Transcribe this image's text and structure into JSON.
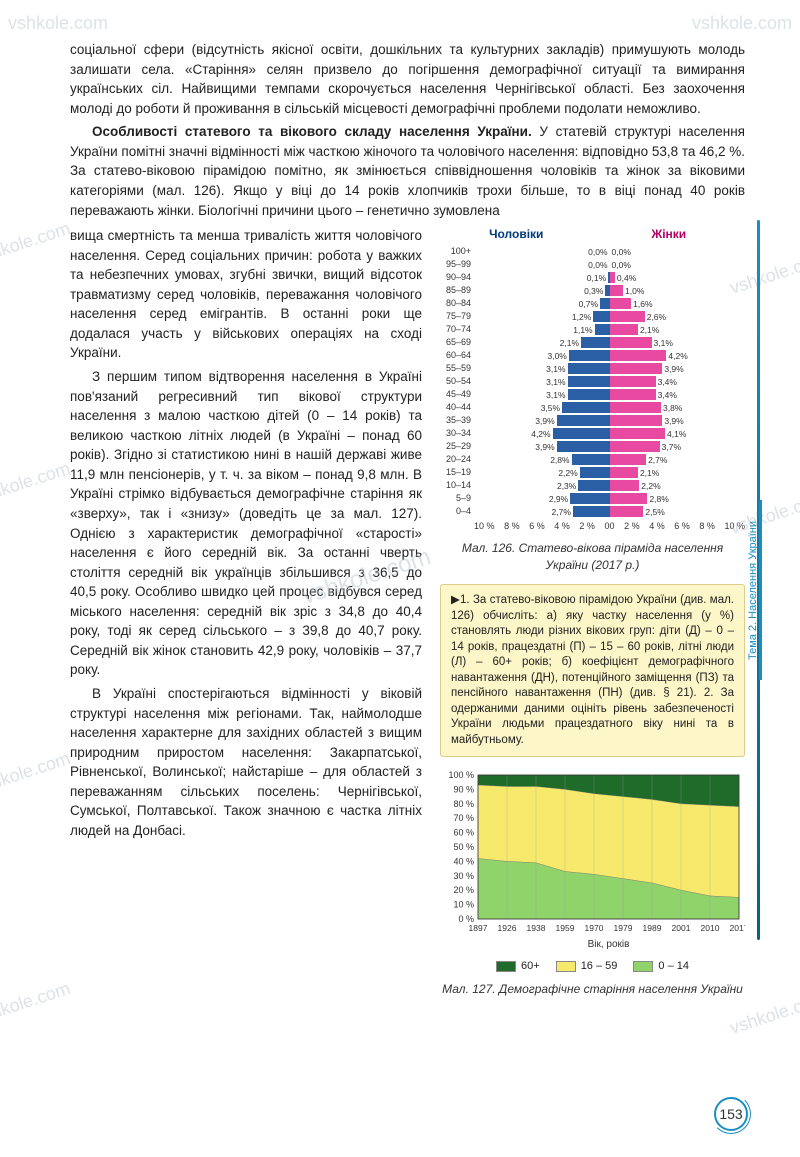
{
  "watermarks": [
    "vshkole.com",
    "vshkole.com",
    "vshkole.com",
    "vshkole.com",
    "vshkole.com",
    "vshkole.com",
    "vshkole.com",
    "vshkole.com",
    "vshkole.com",
    "vshkole.com"
  ],
  "text": {
    "p1": "соціальної сфери (відсутність якісної освіти, дошкільних та культурних закладів) примушують молодь залишати села. «Старіння» селян призвело до погіршення демографічної ситуації та вимирання українських сіл. Найвищими темпами скорочується населення Чернігівської області. Без заохочення молоді до роботи й проживання в сільській місцевості демографічні проблеми подолати неможливо.",
    "h2": "Особливості статевого та вікового складу населення України.",
    "p2": " У статевій структурі населення України помітні значні відмінності між часткою жіночого та чоловічого населення: відповідно 53,8 та 46,2 %. За статево-віковою пірамідою помітно, як змінюється співвідношення чоловіків та жінок за віковими категоріями (мал. 126). Якщо у віці до 14 років хлопчиків трохи більше, то в віці понад 40 років переважають жінки. Біологічні причини цього – генетично зумовлена ",
    "p2b": "вища смертність та менша тривалість життя чоловічого населення. Серед соціальних причин: робота у важких та небезпечних умовах, згубні звички, вищий відсоток травматизму серед чоловіків, переважання чоловічого населення серед емігрантів. В останні роки ще додалася участь у військових операціях на сході України.",
    "p3": "З першим типом відтворення населення в Україні пов'язаний регресивний тип вікової структури населення з малою часткою дітей (0 – 14 років) та великою часткою літніх людей (в Україні – понад 60 років). Згідно зі статистикою нині в нашій державі живе 11,9 млн пенсіонерів, у т. ч. за віком – понад 9,8 млн. В Україні стрімко відбувається демографічне старіння як «зверху», так і «знизу» (доведіть це за мал. 127). Однією з характеристик демографічної «старості» населення є його середній вік. За останні чверть століття середній вік українців збільшився з 36,5 до 40,5 року. Особливо швидко цей процес відбувся серед міського населення: середній вік зріс з 34,8 до 40,4 року, тоді як серед сільського – з 39,8 до 40,7 року. Середній вік жінок становить 42,9 року, чоловіків – 37,7 року.",
    "p4": "В Україні спостерігаються відмінності у віковій структурі населення між регіонами. Так, наймолодше населення характерне для західних областей з вищим природним приростом населення: Закарпатської, Рівненської, Волинської; найстаріше – для областей з переважанням сільських поселень: Чернігівської, Сумської, Полтавської. Також значною є частка літніх людей на Донбасі."
  },
  "pyramid": {
    "title_m": "Чоловіки",
    "title_f": "Жінки",
    "caption": "Мал. 126. Статево-вікова піраміда населення України (2017 р.)",
    "max_pct": 10,
    "colors": {
      "male": "#2b5fa5",
      "female": "#e94aa1"
    },
    "rows": [
      {
        "age": "100+",
        "m": 0.0,
        "f": 0.0,
        "ml": "0,0%",
        "fl": "0,0%"
      },
      {
        "age": "95–99",
        "m": 0.0,
        "f": 0.0,
        "ml": "0,0%",
        "fl": "0,0%"
      },
      {
        "age": "90–94",
        "m": 0.1,
        "f": 0.4,
        "ml": "0,1%",
        "fl": "0,4%"
      },
      {
        "age": "85–89",
        "m": 0.3,
        "f": 1.0,
        "ml": "0,3%",
        "fl": "1,0%"
      },
      {
        "age": "80–84",
        "m": 0.7,
        "f": 1.6,
        "ml": "0,7%",
        "fl": "1,6%"
      },
      {
        "age": "75–79",
        "m": 1.2,
        "f": 2.6,
        "ml": "1,2%",
        "fl": "2,6%"
      },
      {
        "age": "70–74",
        "m": 1.1,
        "f": 2.1,
        "ml": "1,1%",
        "fl": "2,1%"
      },
      {
        "age": "65–69",
        "m": 2.1,
        "f": 3.1,
        "ml": "2,1%",
        "fl": "3,1%"
      },
      {
        "age": "60–64",
        "m": 3.0,
        "f": 4.2,
        "ml": "3,0%",
        "fl": "4,2%"
      },
      {
        "age": "55–59",
        "m": 3.1,
        "f": 3.9,
        "ml": "3,1%",
        "fl": "3,9%"
      },
      {
        "age": "50–54",
        "m": 3.1,
        "f": 3.4,
        "ml": "3,1%",
        "fl": "3,4%"
      },
      {
        "age": "45–49",
        "m": 3.1,
        "f": 3.4,
        "ml": "3,1%",
        "fl": "3,4%"
      },
      {
        "age": "40–44",
        "m": 3.5,
        "f": 3.8,
        "ml": "3,5%",
        "fl": "3,8%"
      },
      {
        "age": "35–39",
        "m": 3.9,
        "f": 3.9,
        "ml": "3,9%",
        "fl": "3,9%"
      },
      {
        "age": "30–34",
        "m": 4.2,
        "f": 4.1,
        "ml": "4,2%",
        "fl": "4,1%"
      },
      {
        "age": "25–29",
        "m": 3.9,
        "f": 3.7,
        "ml": "3,9%",
        "fl": "3,7%"
      },
      {
        "age": "20–24",
        "m": 2.8,
        "f": 2.7,
        "ml": "2,8%",
        "fl": "2,7%"
      },
      {
        "age": "15–19",
        "m": 2.2,
        "f": 2.1,
        "ml": "2,2%",
        "fl": "2,1%"
      },
      {
        "age": "10–14",
        "m": 2.3,
        "f": 2.2,
        "ml": "2,3%",
        "fl": "2,2%"
      },
      {
        "age": "5–9",
        "m": 2.9,
        "f": 2.8,
        "ml": "2,9%",
        "fl": "2,8%"
      },
      {
        "age": "0–4",
        "m": 2.7,
        "f": 2.5,
        "ml": "2,7%",
        "fl": "2,5%"
      }
    ],
    "xticks_left": [
      "10 %",
      "8 %",
      "6 %",
      "4 %",
      "2 %",
      "0"
    ],
    "xticks_right": [
      "0",
      "2 %",
      "4 %",
      "6 %",
      "8 %",
      "10 %"
    ]
  },
  "task": {
    "text": "▶1. За статево-віковою пірамідою України (див. мал. 126) обчисліть: а) яку частку населення (у %) становлять люди різних вікових груп: діти (Д) – 0 – 14 років, працездатні (П) – 15 – 60 років, літні люди (Л) – 60+ років; б) коефіцієнт демографічного навантаження (ДН), потенційного заміщення (ПЗ) та пенсійного навантаження (ПН) (див. § 21). 2. За одержаними даними оцініть рівень забезпеченості України людьми працездатного віку нині та в майбутньому."
  },
  "area": {
    "caption": "Мал. 127. Демографічне старіння населення України",
    "xlabel": "Вік, років",
    "xticks": [
      "1897",
      "1926",
      "1938",
      "1959",
      "1970",
      "1979",
      "1989",
      "2001",
      "2010",
      "2017"
    ],
    "yticks": [
      "100 %",
      "90 %",
      "80 %",
      "70 %",
      "60 %",
      "50 %",
      "40 %",
      "30 %",
      "20 %",
      "10 %",
      "0 %"
    ],
    "colors": {
      "60+": "#1f6b2a",
      "16-59": "#f6e96b",
      "0-14": "#8fd36a",
      "grid": "#9aa0a6",
      "bg": "#ffffff"
    },
    "legend": [
      {
        "label": "60+",
        "color": "#1f6b2a"
      },
      {
        "label": "16 – 59",
        "color": "#f6e96b"
      },
      {
        "label": "0 – 14",
        "color": "#8fd36a"
      }
    ],
    "series": {
      "boundary_60": [
        93,
        92,
        92,
        90,
        87,
        85,
        83,
        80,
        79,
        78
      ],
      "boundary_16": [
        42,
        40,
        39,
        33,
        31,
        28,
        25,
        20,
        16,
        15
      ]
    }
  },
  "side_tab": "Тема 2. Населення України",
  "page_number": "153"
}
